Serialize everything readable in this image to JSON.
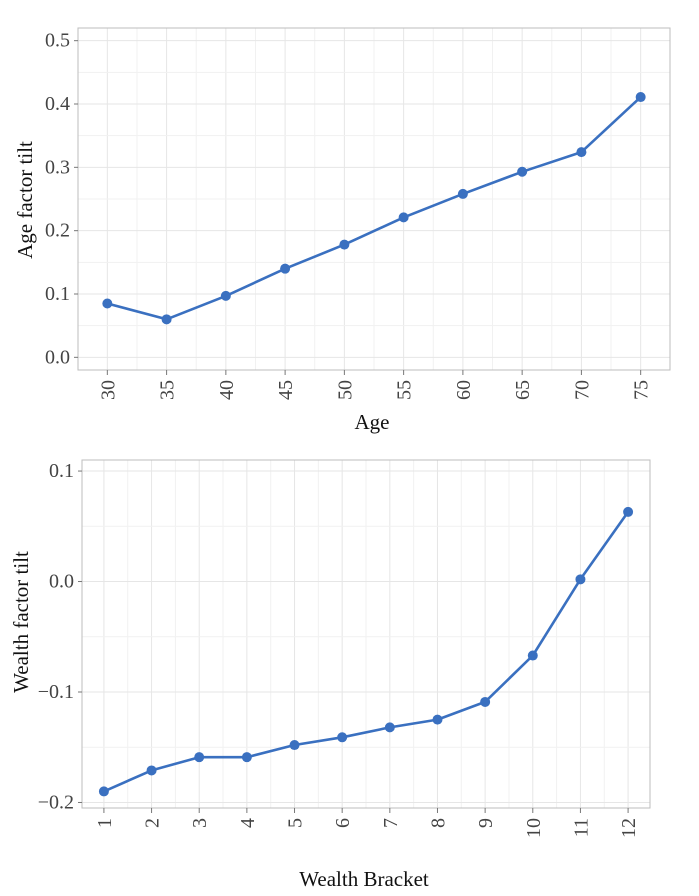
{
  "chart_data": [
    {
      "type": "line",
      "xlabel": "Age",
      "ylabel": "Age factor tilt",
      "x": [
        30,
        35,
        40,
        45,
        50,
        55,
        60,
        65,
        70,
        75
      ],
      "x_ticks": [
        "30",
        "35",
        "40",
        "45",
        "50",
        "55",
        "60",
        "65",
        "70",
        "75"
      ],
      "y": [
        0.085,
        0.06,
        0.097,
        0.14,
        0.178,
        0.221,
        0.258,
        0.293,
        0.324,
        0.411
      ],
      "y_ticks": [
        0.0,
        0.1,
        0.2,
        0.3,
        0.4,
        0.5
      ],
      "y_tick_labels": [
        "0.0",
        "0.1",
        "0.2",
        "0.3",
        "0.4",
        "0.5"
      ],
      "ylim": [
        -0.02,
        0.52
      ],
      "grid": true,
      "color": "#3a70c0"
    },
    {
      "type": "line",
      "xlabel": "Wealth Bracket",
      "ylabel": "Wealth factor tilt",
      "x": [
        1,
        2,
        3,
        4,
        5,
        6,
        7,
        8,
        9,
        10,
        11,
        12
      ],
      "x_ticks": [
        "1",
        "2",
        "3",
        "4",
        "5",
        "6",
        "7",
        "8",
        "9",
        "10",
        "11",
        "12"
      ],
      "y": [
        -0.19,
        -0.171,
        -0.159,
        -0.159,
        -0.148,
        -0.141,
        -0.132,
        -0.125,
        -0.109,
        -0.067,
        0.002,
        0.063
      ],
      "y_ticks": [
        -0.2,
        -0.1,
        0.0,
        0.1
      ],
      "y_tick_labels": [
        "−0.2",
        "−0.1",
        "0.0",
        "0.1"
      ],
      "ylim": [
        -0.205,
        0.11
      ],
      "grid": true,
      "color": "#3a70c0"
    }
  ]
}
